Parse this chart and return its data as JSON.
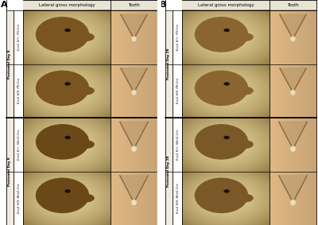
{
  "panel_A_label": "A",
  "panel_B_label": "B",
  "col_headers_A": [
    "Lateral gross morphology",
    "Tooth"
  ],
  "col_headers_B": [
    "Lateral gross morphology",
    "Tooth"
  ],
  "group_label_A1": "Postnatal Day 8",
  "group_label_A2": "Postnatal Day 8",
  "group_label_B1": "Postnatal Day 28",
  "group_label_B2": "Postnatal Day 28",
  "row_labels_A": [
    "Evc2 fl/+; P0-Cre",
    "Evc2 fl/fl; P0-Cre",
    "Evc2 fl/+; Wnt1-Cre",
    "Evc2 fl/fl; Wnt1-Cre"
  ],
  "row_labels_B": [
    "Evc2 fl/+; P0-Cre",
    "Evc2 fl/fl; P0-Cre",
    "Evc2 fl/+; Wnt1-Cre",
    "Evc2 fl/fl; Wnt1-Cre"
  ],
  "white": "#ffffff",
  "border_color": "#555555",
  "text_color": "#111111",
  "header_bg": "#e8e4d4",
  "sidebar_bg": "#f0ece0",
  "mouse_bg_A": [
    "#c8a060",
    "#c8a060",
    "#b89050",
    "#b89050"
  ],
  "mouse_fur_A": [
    "#7a5520",
    "#7a5520",
    "#6a4818",
    "#6a4818"
  ],
  "tooth_bg_A": [
    "#d4b880",
    "#d4b880",
    "#d4b880",
    "#d4b880"
  ],
  "mouse_bg_B": [
    "#c8a060",
    "#c8a060",
    "#b08040",
    "#b08040"
  ],
  "mouse_fur_B": [
    "#8a6530",
    "#8a6530",
    "#7a5828",
    "#7a5828"
  ],
  "tooth_bg_B": [
    "#c8a060",
    "#c8a060",
    "#c8a060",
    "#c8a060"
  ]
}
